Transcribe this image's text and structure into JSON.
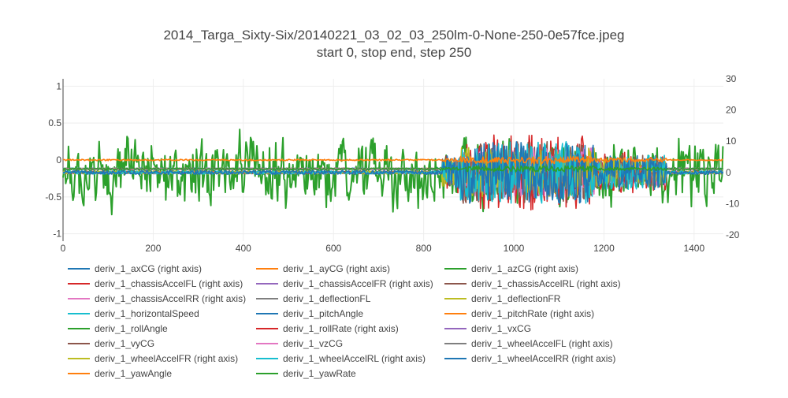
{
  "chart_data": {
    "type": "line",
    "title": "2014_Targa_Sixty-Six/20140221_03_02_03_250lm-0-None-250-0e57fce.jpeg",
    "subtitle": "start 0, stop end, step 250",
    "xlabel": "",
    "ylabel": "",
    "y2label": "",
    "xlim": [
      0,
      1465
    ],
    "ylim": [
      -1.1,
      1.1
    ],
    "y2lim": [
      -22,
      30
    ],
    "x_ticks": [
      0,
      200,
      400,
      600,
      800,
      1000,
      1200,
      1400
    ],
    "y_ticks": [
      -1,
      -0.5,
      0,
      0.5,
      1
    ],
    "y2_ticks": [
      -20,
      -10,
      0,
      10,
      20,
      30
    ],
    "grid": true,
    "legend_placement": "bottom",
    "series": [
      {
        "name": "deriv_1_axCG (right axis)",
        "axis": "right",
        "color": "#1f77b4",
        "base": 0,
        "amp_quiet": 0.3,
        "amp_active": 2.0
      },
      {
        "name": "deriv_1_ayCG (right axis)",
        "axis": "right",
        "color": "#ff7f0e",
        "base": 0,
        "amp_quiet": 0.3,
        "amp_active": 4.0
      },
      {
        "name": "deriv_1_azCG (right axis)",
        "axis": "right",
        "color": "#2ca02c",
        "base": 0,
        "amp_quiet": 12,
        "amp_active": 12
      },
      {
        "name": "deriv_1_chassisAccelFL (right axis)",
        "axis": "right",
        "color": "#d62728",
        "base": 0,
        "amp_quiet": 0.4,
        "amp_active": 12
      },
      {
        "name": "deriv_1_chassisAccelFR (right axis)",
        "axis": "right",
        "color": "#9467bd",
        "base": 0,
        "amp_quiet": 0.4,
        "amp_active": 8
      },
      {
        "name": "deriv_1_chassisAccelRL (right axis)",
        "axis": "right",
        "color": "#8c564b",
        "base": 0,
        "amp_quiet": 0.4,
        "amp_active": 10
      },
      {
        "name": "deriv_1_chassisAccelRR (right axis)",
        "axis": "right",
        "color": "#e377c2",
        "base": 0,
        "amp_quiet": 0.4,
        "amp_active": 8
      },
      {
        "name": "deriv_1_deflectionFL",
        "axis": "left",
        "color": "#7f7f7f",
        "base": -0.12,
        "amp_quiet": 0.01,
        "amp_active": 0.15
      },
      {
        "name": "deriv_1_deflectionFR",
        "axis": "left",
        "color": "#bcbd22",
        "base": -0.12,
        "amp_quiet": 0.01,
        "amp_active": 0.15
      },
      {
        "name": "deriv_1_horizontalSpeed",
        "axis": "left",
        "color": "#17becf",
        "base": -0.12,
        "amp_quiet": 0.01,
        "amp_active": 0.05
      },
      {
        "name": "deriv_1_pitchAngle",
        "axis": "left",
        "color": "#1f77b4",
        "base": -0.12,
        "amp_quiet": 0.01,
        "amp_active": 0.05
      },
      {
        "name": "deriv_1_pitchRate (right axis)",
        "axis": "right",
        "color": "#ff7f0e",
        "base": 0,
        "amp_quiet": 0.4,
        "amp_active": 4
      },
      {
        "name": "deriv_1_rollAngle",
        "axis": "left",
        "color": "#2ca02c",
        "base": -0.12,
        "amp_quiet": 0.01,
        "amp_active": 0.05
      },
      {
        "name": "deriv_1_rollRate (right axis)",
        "axis": "right",
        "color": "#d62728",
        "base": 0,
        "amp_quiet": 0.4,
        "amp_active": 6
      },
      {
        "name": "deriv_1_vxCG",
        "axis": "left",
        "color": "#9467bd",
        "base": -0.12,
        "amp_quiet": 0.01,
        "amp_active": 0.05
      },
      {
        "name": "deriv_1_vyCG",
        "axis": "left",
        "color": "#8c564b",
        "base": -0.12,
        "amp_quiet": 0.01,
        "amp_active": 0.05
      },
      {
        "name": "deriv_1_vzCG",
        "axis": "left",
        "color": "#e377c2",
        "base": -0.12,
        "amp_quiet": 0.01,
        "amp_active": 0.05
      },
      {
        "name": "deriv_1_wheelAccelFL (right axis)",
        "axis": "right",
        "color": "#7f7f7f",
        "base": 0,
        "amp_quiet": 0.5,
        "amp_active": 8
      },
      {
        "name": "deriv_1_wheelAccelFR (right axis)",
        "axis": "right",
        "color": "#bcbd22",
        "base": 0,
        "amp_quiet": 0.5,
        "amp_active": 8
      },
      {
        "name": "deriv_1_wheelAccelRL (right axis)",
        "axis": "right",
        "color": "#17becf",
        "base": 0,
        "amp_quiet": 0.5,
        "amp_active": 10
      },
      {
        "name": "deriv_1_wheelAccelRR (right axis)",
        "axis": "right",
        "color": "#1f77b4",
        "base": 0,
        "amp_quiet": 0.6,
        "amp_active": 10
      },
      {
        "name": "deriv_1_yawAngle",
        "axis": "left",
        "color": "#ff7f0e",
        "base": 0.0,
        "amp_quiet": 0.01,
        "amp_active": 0.05
      },
      {
        "name": "deriv_1_yawRate",
        "axis": "left",
        "color": "#2ca02c",
        "base": -0.12,
        "amp_quiet": 0.01,
        "amp_active": 0.04
      }
    ]
  }
}
